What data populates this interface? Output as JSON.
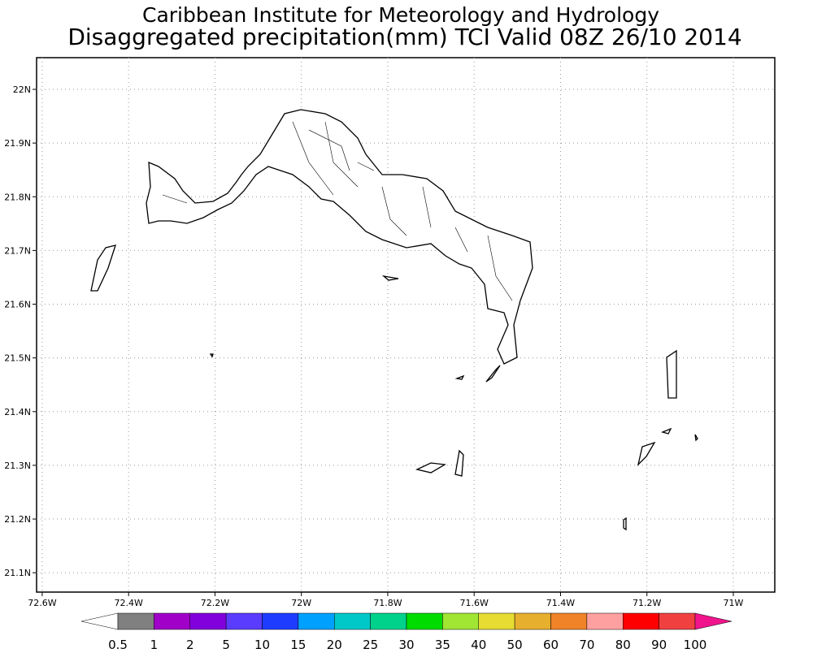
{
  "map": {
    "title": "Caribbean Institute for Meteorology and Hydrology",
    "subtitle": "Disaggregated precipitation(mm) TCI Valid 08Z 26/10 2014",
    "xlim": [
      -72.613,
      -70.904
    ],
    "ylim": [
      21.064,
      22.059
    ],
    "grid": true,
    "xticks": [
      {
        "value": -72.6,
        "label": "72.6W"
      },
      {
        "value": -72.4,
        "label": "72.4W"
      },
      {
        "value": -72.2,
        "label": "72.2W"
      },
      {
        "value": -72.0,
        "label": "72W"
      },
      {
        "value": -71.8,
        "label": "71.8W"
      },
      {
        "value": -71.6,
        "label": "71.6W"
      },
      {
        "value": -71.4,
        "label": "71.4W"
      },
      {
        "value": -71.2,
        "label": "71.2W"
      },
      {
        "value": -71.0,
        "label": "71W"
      }
    ],
    "yticks": [
      {
        "value": 21.1,
        "label": "21.1N"
      },
      {
        "value": 21.2,
        "label": "21.2N"
      },
      {
        "value": 21.3,
        "label": "21.3N"
      },
      {
        "value": 21.4,
        "label": "21.4N"
      },
      {
        "value": 21.5,
        "label": "21.5N"
      },
      {
        "value": 21.6,
        "label": "21.6N"
      },
      {
        "value": 21.7,
        "label": "21.7N"
      },
      {
        "value": 21.8,
        "label": "21.8N"
      },
      {
        "value": 21.9,
        "label": "21.9N"
      },
      {
        "value": 22.0,
        "label": "22N"
      }
    ],
    "colorbar": {
      "levels": [
        0.5,
        1,
        2,
        5,
        10,
        15,
        20,
        25,
        30,
        35,
        40,
        50,
        60,
        70,
        80,
        90,
        100
      ],
      "colors": [
        "#ffffff",
        "#808080",
        "#a000c8",
        "#8200dc",
        "#5a3cff",
        "#1e3cff",
        "#00a0ff",
        "#00c8c8",
        "#00d28c",
        "#00dc00",
        "#a0e632",
        "#e6dc32",
        "#e6af2d",
        "#f08228",
        "#ffa0a0",
        "#ff0000",
        "#f04040",
        "#f0148c"
      ]
    }
  }
}
